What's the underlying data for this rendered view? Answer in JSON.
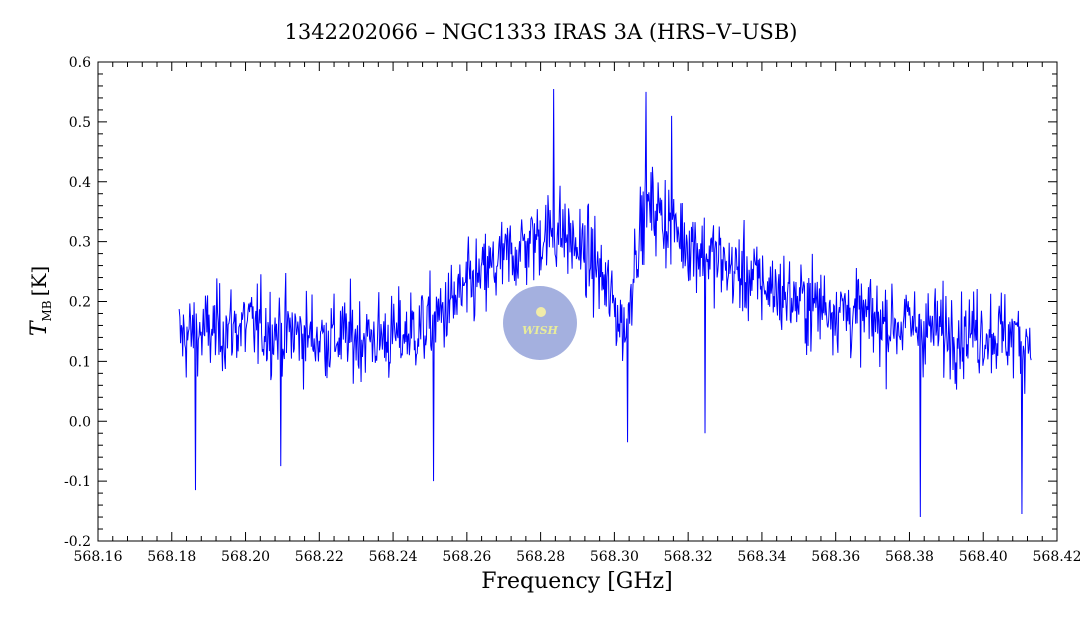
{
  "chart_data": {
    "type": "line",
    "title": "1342202066 – NGC1333 IRAS 3A (HRS–V–USB)",
    "xlabel": "Frequency [GHz]",
    "ylabel": {
      "symbol": "T",
      "subscript": "MB",
      "unit": "[K]"
    },
    "xlim": [
      568.16,
      568.42
    ],
    "ylim": [
      -0.2,
      0.6
    ],
    "xticks": [
      "568.16",
      "568.18",
      "568.20",
      "568.22",
      "568.24",
      "568.26",
      "568.28",
      "568.30",
      "568.32",
      "568.34",
      "568.36",
      "568.38",
      "568.40",
      "568.42"
    ],
    "yticks": [
      "-0.2",
      "-0.1",
      "0.0",
      "0.1",
      "0.2",
      "0.3",
      "0.4",
      "0.5",
      "0.6"
    ],
    "grid": false,
    "series": [
      {
        "color": "#0000ff",
        "x_start": 568.182,
        "x_end": 568.413,
        "points": 1200,
        "profile_anchors": [
          [
            568.182,
            0.14
          ],
          [
            568.19,
            0.15
          ],
          [
            568.2,
            0.16
          ],
          [
            568.21,
            0.15
          ],
          [
            568.22,
            0.14
          ],
          [
            568.23,
            0.14
          ],
          [
            568.24,
            0.14
          ],
          [
            568.25,
            0.16
          ],
          [
            568.26,
            0.22
          ],
          [
            568.27,
            0.27
          ],
          [
            568.28,
            0.31
          ],
          [
            568.285,
            0.32
          ],
          [
            568.29,
            0.29
          ],
          [
            568.295,
            0.26
          ],
          [
            568.3,
            0.19
          ],
          [
            568.303,
            0.15
          ],
          [
            568.306,
            0.3
          ],
          [
            568.31,
            0.36
          ],
          [
            568.32,
            0.3
          ],
          [
            568.33,
            0.26
          ],
          [
            568.34,
            0.23
          ],
          [
            568.35,
            0.2
          ],
          [
            568.36,
            0.19
          ],
          [
            568.37,
            0.17
          ],
          [
            568.38,
            0.16
          ],
          [
            568.39,
            0.15
          ],
          [
            568.4,
            0.15
          ],
          [
            568.413,
            0.14
          ]
        ],
        "noise_amplitude": 0.07,
        "spikes": [
          [
            568.1865,
            -0.115
          ],
          [
            568.2095,
            -0.075
          ],
          [
            568.251,
            -0.1
          ],
          [
            568.2835,
            0.555
          ],
          [
            568.3085,
            0.55
          ],
          [
            568.3155,
            0.51
          ],
          [
            568.3035,
            -0.035
          ],
          [
            568.3245,
            -0.02
          ],
          [
            568.383,
            -0.16
          ],
          [
            568.4105,
            -0.155
          ]
        ]
      }
    ]
  },
  "watermark": {
    "text": "WISH",
    "color": "#5a6fc4"
  }
}
